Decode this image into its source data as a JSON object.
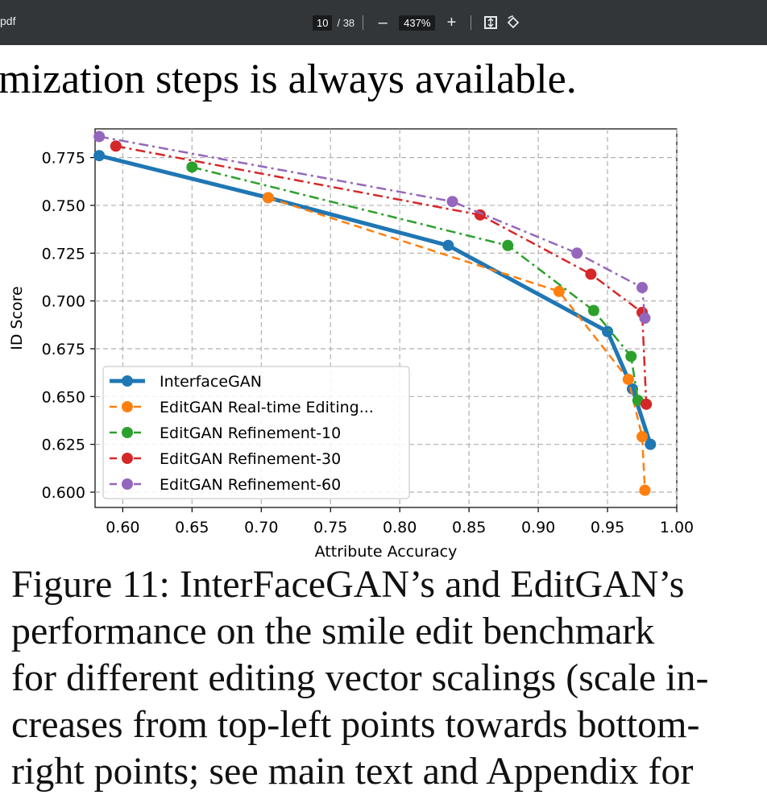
{
  "toolbar": {
    "file_label": "pdf",
    "page_current": "10",
    "page_total": "/ 38",
    "zoom_out": "–",
    "zoom_level": "437%",
    "zoom_in": "+",
    "icons": [
      "fit-page-icon",
      "rotate-icon"
    ]
  },
  "document": {
    "top_partial_line": "mization steps is always available.",
    "caption_lines": [
      "Figure 11: InterFaceGAN’s and EditGAN’s",
      "performance on the smile edit benchmark",
      "for different editing vector scalings (scale in-",
      "creases from top-left points towards bottom-",
      "right points; see main text and Appendix for"
    ]
  },
  "chart_data": {
    "type": "line",
    "xlabel": "Attribute Accuracy",
    "ylabel": "ID Score",
    "xlim": [
      0.58,
      1.0
    ],
    "ylim": [
      0.592,
      0.79
    ],
    "xticks": [
      "0.60",
      "0.65",
      "0.70",
      "0.75",
      "0.80",
      "0.85",
      "0.90",
      "0.95",
      "1.00"
    ],
    "yticks": [
      "0.600",
      "0.625",
      "0.650",
      "0.675",
      "0.700",
      "0.725",
      "0.750",
      "0.775"
    ],
    "grid": true,
    "legend_position": "lower-left",
    "series": [
      {
        "name": "InterfaceGAN",
        "color": "#1f77b4",
        "style": "solid",
        "x": [
          0.583,
          0.705,
          0.835,
          0.95,
          0.968,
          0.981
        ],
        "y": [
          0.776,
          0.754,
          0.729,
          0.684,
          0.654,
          0.625
        ]
      },
      {
        "name": "EditGAN Real-time Editing...",
        "color": "#ff7f0e",
        "style": "dashed",
        "x": [
          0.705,
          0.915,
          0.965,
          0.975,
          0.977
        ],
        "y": [
          0.754,
          0.705,
          0.659,
          0.629,
          0.601
        ]
      },
      {
        "name": "EditGAN Refinement-10",
        "color": "#2ca02c",
        "style": "dashdot",
        "x": [
          0.65,
          0.878,
          0.94,
          0.967,
          0.972
        ],
        "y": [
          0.77,
          0.729,
          0.695,
          0.671,
          0.648
        ]
      },
      {
        "name": "EditGAN Refinement-30",
        "color": "#d62728",
        "style": "dashdot",
        "x": [
          0.595,
          0.858,
          0.938,
          0.975,
          0.978
        ],
        "y": [
          0.781,
          0.745,
          0.714,
          0.694,
          0.646
        ]
      },
      {
        "name": "EditGAN Refinement-60",
        "color": "#9467bd",
        "style": "dashdot",
        "x": [
          0.583,
          0.838,
          0.928,
          0.975,
          0.977
        ],
        "y": [
          0.786,
          0.752,
          0.725,
          0.707,
          0.691
        ]
      }
    ]
  }
}
